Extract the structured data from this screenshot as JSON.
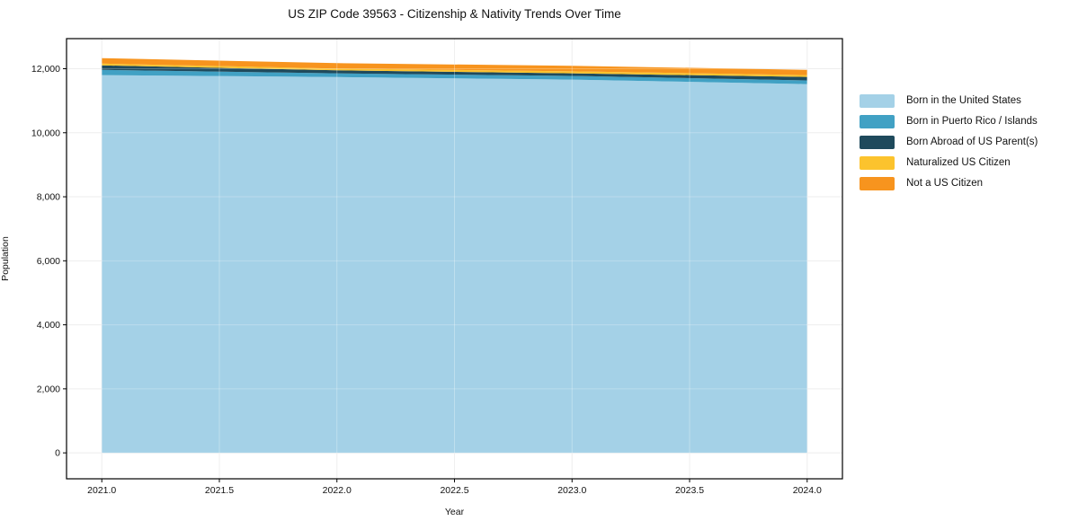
{
  "title": "US ZIP Code 39563 - Citizenship & Nativity Trends Over Time",
  "chart_data": {
    "type": "area",
    "stacked": true,
    "title": "US ZIP Code 39563 - Citizenship & Nativity Trends Over Time",
    "xlabel": "Year",
    "ylabel": "Population",
    "grid": true,
    "legend_position": "right-outside",
    "x": [
      2021,
      2022,
      2023,
      2024
    ],
    "series": [
      {
        "name": "Born in the United States",
        "color": "#A4D1E7",
        "values": [
          11800,
          11740,
          11660,
          11520
        ]
      },
      {
        "name": "Born in Puerto Rico / Islands",
        "color": "#41A1C4",
        "values": [
          165,
          115,
          115,
          115
        ]
      },
      {
        "name": "Born Abroad of US Parent(s)",
        "color": "#1F4A5C",
        "values": [
          140,
          95,
          80,
          110
        ]
      },
      {
        "name": "Naturalized US Citizen",
        "color": "#FCC32D",
        "values": [
          55,
          55,
          65,
          55
        ]
      },
      {
        "name": "Not a US Citizen",
        "color": "#F7941E",
        "values": [
          170,
          170,
          170,
          165
        ]
      }
    ],
    "stack_totals": [
      12330,
      12175,
      12090,
      11965
    ],
    "xlim": [
      2020.85,
      2024.15
    ],
    "ylim": [
      -810,
      12940
    ],
    "xticks": [
      2021.0,
      2021.5,
      2022.0,
      2022.5,
      2023.0,
      2023.5,
      2024.0
    ],
    "xtick_labels": [
      "2021.0",
      "2021.5",
      "2022.0",
      "2022.5",
      "2023.0",
      "2023.5",
      "2024.0"
    ],
    "yticks": [
      0,
      2000,
      4000,
      6000,
      8000,
      10000,
      12000
    ],
    "ytick_labels": [
      "0",
      "2,000",
      "4,000",
      "6,000",
      "8,000",
      "10,000",
      "12,000"
    ],
    "colors": {
      "grid": "#e9e9e9",
      "axis": "#000000",
      "background": "#ffffff"
    }
  }
}
